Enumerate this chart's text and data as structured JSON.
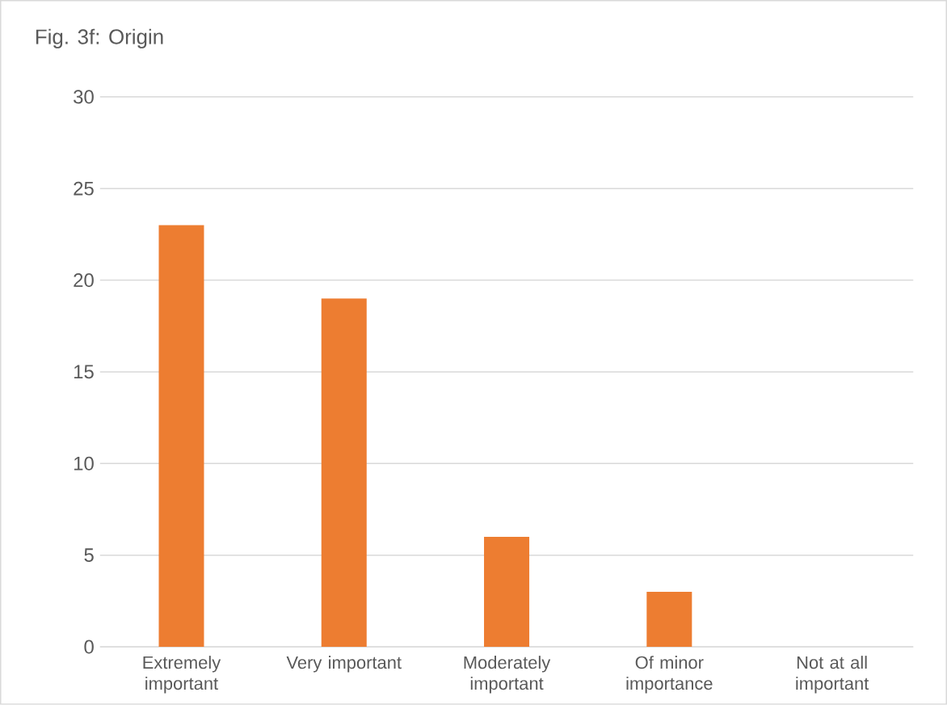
{
  "chart_data": {
    "type": "bar",
    "title": "Fig. 3f: Origin",
    "categories": [
      "Extremely important",
      "Very important",
      "Moderately important",
      "Of minor importance",
      "Not at all important"
    ],
    "values": [
      23,
      19,
      6,
      3,
      0
    ],
    "color": "#ed7d31",
    "ylim": [
      0,
      30
    ],
    "yticks": [
      0,
      5,
      10,
      15,
      20,
      25,
      30
    ],
    "grid": "y"
  }
}
